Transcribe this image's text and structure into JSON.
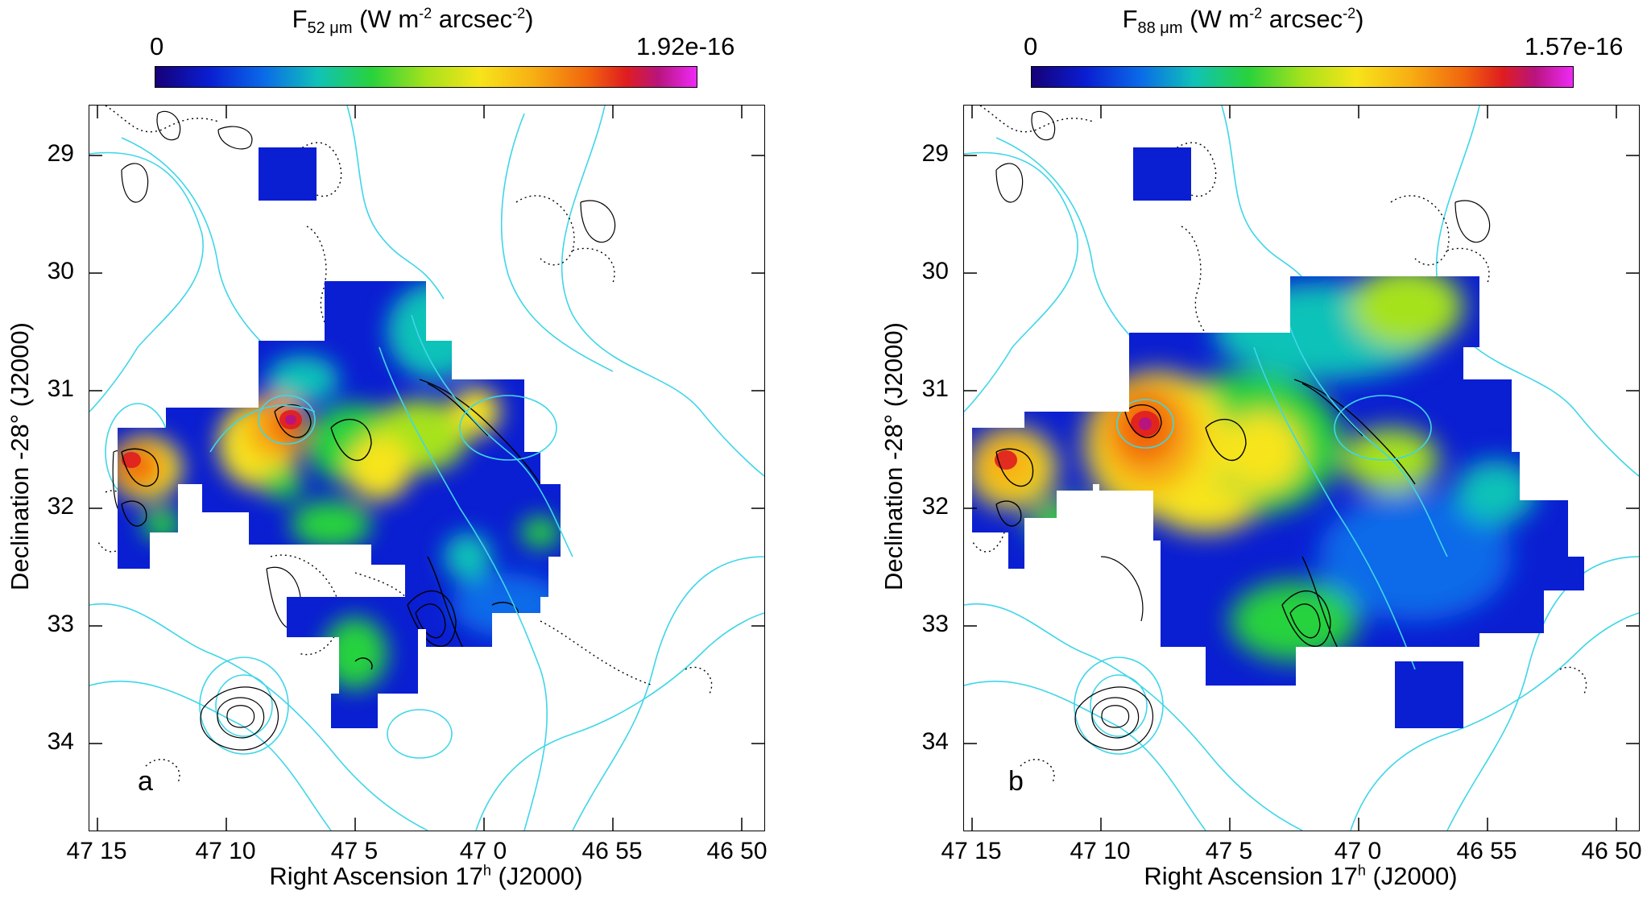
{
  "panels": [
    {
      "letter": "a",
      "colorbar": {
        "quantity": "F",
        "subscript": "52 μm",
        "units_pre": "(W m",
        "units_exp1": "-2",
        "units_mid": " arcsec",
        "units_exp2": "-2",
        "units_post": ")",
        "min": "0",
        "max": "1.92e-16"
      }
    },
    {
      "letter": "b",
      "colorbar": {
        "quantity": "F",
        "subscript": "88 μm",
        "units_pre": "(W m",
        "units_exp1": "-2",
        "units_mid": " arcsec",
        "units_exp2": "-2",
        "units_post": ")",
        "min": "0",
        "max": "1.57e-16"
      }
    }
  ],
  "axes": {
    "ylabel": "Declination  -28° (J2000)",
    "xlabel_pre": "Right Ascension   17",
    "xlabel_sup": "h",
    "xlabel_post": " (J2000)",
    "yticks": [
      "29",
      "30",
      "31",
      "32",
      "33",
      "34"
    ],
    "xticks": [
      "47 15",
      "47 10",
      "47 5",
      "47 0",
      "46 55",
      "46 50"
    ]
  },
  "colors": {
    "contour_cyan": "#3fd6e8",
    "contour_black": "#000000",
    "colormap": [
      "#160078",
      "#0a1ed2",
      "#0a6ae8",
      "#10c2b8",
      "#28d23c",
      "#a6e21c",
      "#f7e41a",
      "#f7ae13",
      "#f1640e",
      "#df1d1f",
      "#b8147e",
      "#ee2af6"
    ]
  }
}
